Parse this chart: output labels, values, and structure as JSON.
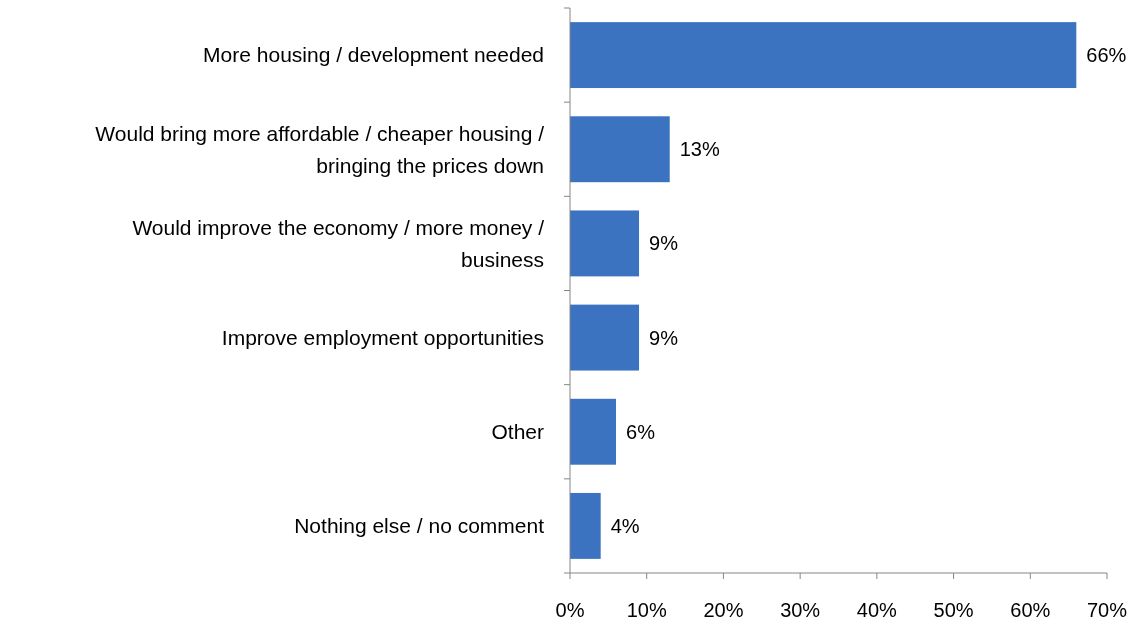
{
  "chart_data": {
    "type": "bar",
    "orientation": "horizontal",
    "categories": [
      "More housing / development needed",
      "Would bring more affordable / cheaper housing / bringing the prices down",
      "Would improve the economy / more money / business",
      "Improve employment opportunities",
      "Other",
      "Nothing else / no comment"
    ],
    "values": [
      66,
      13,
      9,
      9,
      6,
      4
    ],
    "value_labels": [
      "66%",
      "13%",
      "9%",
      "9%",
      "6%",
      "4%"
    ],
    "color": "#3b73c1",
    "xlim": [
      0,
      70
    ],
    "xticks": [
      {
        "value": 0,
        "label": "0%"
      },
      {
        "value": 10,
        "label": "10%"
      },
      {
        "value": 20,
        "label": "20%"
      },
      {
        "value": 30,
        "label": "30%"
      },
      {
        "value": 40,
        "label": "40%"
      },
      {
        "value": 50,
        "label": "50%"
      },
      {
        "value": 60,
        "label": "60%"
      },
      {
        "value": 70,
        "label": "70%"
      }
    ],
    "grid": false
  }
}
